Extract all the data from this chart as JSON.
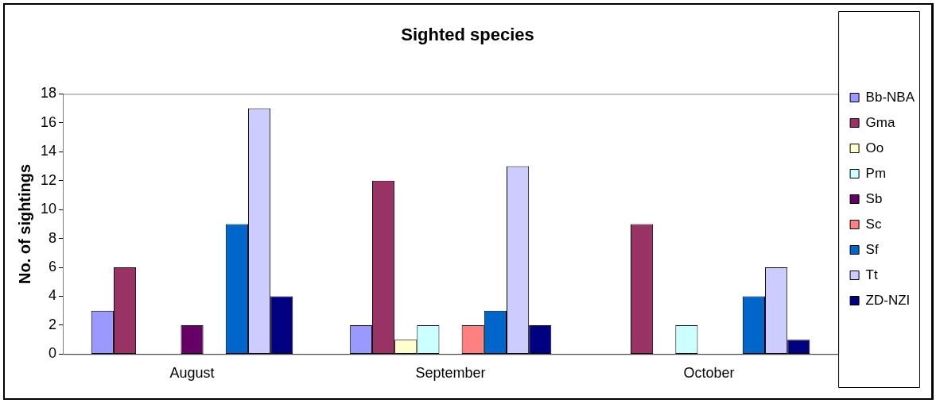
{
  "chart_data": {
    "type": "bar",
    "title": "Sighted species",
    "ylabel": "No. of sightings",
    "categories": [
      "August",
      "September",
      "October"
    ],
    "series": [
      {
        "name": "Bb-NBA",
        "color": "#9999ff",
        "values": [
          3,
          2,
          0
        ]
      },
      {
        "name": "Gma",
        "color": "#993366",
        "values": [
          6,
          12,
          9
        ]
      },
      {
        "name": "Oo",
        "color": "#ffffcc",
        "values": [
          0,
          1,
          0
        ]
      },
      {
        "name": "Pm",
        "color": "#ccffff",
        "values": [
          0,
          2,
          2
        ]
      },
      {
        "name": "Sb",
        "color": "#660066",
        "values": [
          2,
          0,
          0
        ]
      },
      {
        "name": "Sc",
        "color": "#ff8080",
        "values": [
          0,
          2,
          0
        ]
      },
      {
        "name": "Sf",
        "color": "#0066cc",
        "values": [
          9,
          3,
          4
        ]
      },
      {
        "name": "Tt",
        "color": "#ccccff",
        "values": [
          17,
          13,
          6
        ]
      },
      {
        "name": "ZD-NZI",
        "color": "#000080",
        "values": [
          4,
          2,
          1
        ]
      }
    ],
    "ylim": [
      0,
      18
    ],
    "yticks": [
      0,
      2,
      4,
      6,
      8,
      10,
      12,
      14,
      16,
      18
    ],
    "grid": false,
    "legend": "right"
  }
}
